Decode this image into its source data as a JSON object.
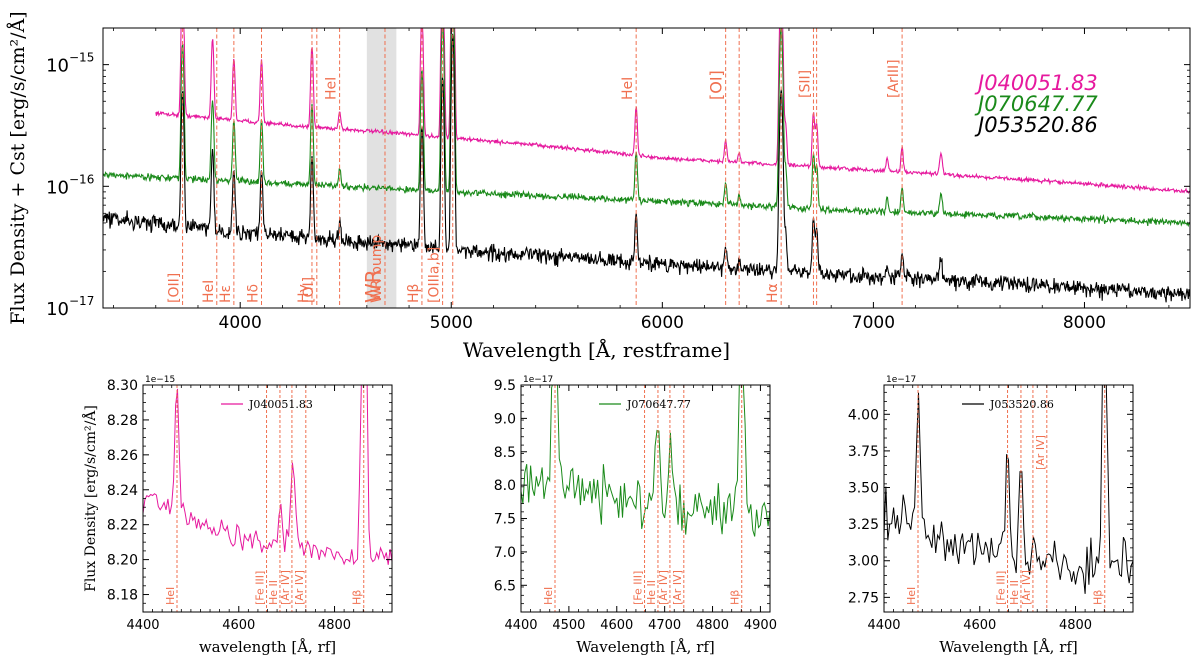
{
  "colors": {
    "magenta": "#e6199e",
    "green": "#1a8a1a",
    "black": "#000000",
    "line_marker": "#f07050",
    "wr_band": "#d9d9d9"
  },
  "chart_data": [
    {
      "type": "line",
      "ylabel": "Flux Density + Cst [erg/s/cm²/Å]",
      "xlabel": "Wavelength [Å, restframe]",
      "xlim": [
        3350,
        8500
      ],
      "ylim": [
        1e-17,
        2e-15
      ],
      "yscale": "log",
      "x_ticks": [
        4000,
        5000,
        6000,
        7000,
        8000
      ],
      "x_tick_labels": [
        "4000",
        "5000",
        "6000",
        "7000",
        "8000"
      ],
      "y_ticks": [
        1e-17,
        1e-16,
        1e-15
      ],
      "y_tick_labels": [
        "10",
        "10",
        "10"
      ],
      "y_tick_exponents": [
        "−17",
        "−16",
        "−15"
      ],
      "legend_placement": "top-right",
      "wr_band": [
        4600,
        4740
      ],
      "series": [
        {
          "name": "J040051.83",
          "color": "#e6199e",
          "start": 3600,
          "continuum": [
            [
              3600,
              4e-16
            ],
            [
              4200,
              3.2e-16
            ],
            [
              5000,
              2.5e-16
            ],
            [
              6000,
              1.7e-16
            ],
            [
              7000,
              1.35e-16
            ],
            [
              8500,
              9e-17
            ]
          ],
          "noise": 0.03
        },
        {
          "name": "J070647.77",
          "color": "#1a8a1a",
          "start": 3350,
          "continuum": [
            [
              3350,
              1.25e-16
            ],
            [
              4000,
              1.1e-16
            ],
            [
              5000,
              9e-17
            ],
            [
              6000,
              7.5e-17
            ],
            [
              7000,
              6.2e-17
            ],
            [
              8500,
              5e-17
            ]
          ],
          "noise": 0.05
        },
        {
          "name": "J053520.86",
          "color": "#000000",
          "start": 3350,
          "continuum": [
            [
              3350,
              5.5e-17
            ],
            [
              4000,
              4.2e-17
            ],
            [
              5000,
              3e-17
            ],
            [
              6000,
              2.3e-17
            ],
            [
              7000,
              1.8e-17
            ],
            [
              8500,
              1.3e-17
            ]
          ],
          "noise": 0.12
        }
      ],
      "emission_lines": [
        {
          "w": 3727,
          "amp": 12,
          "sig": 5
        },
        {
          "w": 3869,
          "amp": 3.5,
          "sig": 5
        },
        {
          "w": 3970,
          "amp": 2.2,
          "sig": 5
        },
        {
          "w": 4101,
          "amp": 2.3,
          "sig": 5
        },
        {
          "w": 4340,
          "amp": 3.6,
          "sig": 5
        },
        {
          "w": 4471,
          "amp": 0.4,
          "sig": 5
        },
        {
          "w": 4861,
          "amp": 9,
          "sig": 5
        },
        {
          "w": 4959,
          "amp": 25,
          "sig": 5
        },
        {
          "w": 5007,
          "amp": 60,
          "sig": 5
        },
        {
          "w": 5876,
          "amp": 1.5,
          "sig": 5
        },
        {
          "w": 6300,
          "amp": 0.5,
          "sig": 5
        },
        {
          "w": 6364,
          "amp": 0.2,
          "sig": 5
        },
        {
          "w": 6563,
          "amp": 30,
          "sig": 6
        },
        {
          "w": 6584,
          "amp": 1.2,
          "sig": 5
        },
        {
          "w": 6716,
          "amp": 1.8,
          "sig": 5
        },
        {
          "w": 6731,
          "amp": 1.3,
          "sig": 5
        },
        {
          "w": 7065,
          "amp": 0.3,
          "sig": 5
        },
        {
          "w": 7136,
          "amp": 0.6,
          "sig": 5
        },
        {
          "w": 7320,
          "amp": 0.5,
          "sig": 6
        }
      ],
      "marker_lines": [
        {
          "w": 3727,
          "label": "[OII]",
          "pos": "bottom"
        },
        {
          "w": 3889,
          "label": "HeI",
          "pos": "bottom"
        },
        {
          "w": 3970,
          "label": "Hε",
          "pos": "bottom"
        },
        {
          "w": 4101,
          "label": "Hδ",
          "pos": "bottom"
        },
        {
          "w": 4340,
          "label": "Hγ",
          "pos": "bottom"
        },
        {
          "w": 4363,
          "label": "[OI]",
          "pos": "bottom"
        },
        {
          "w": 4471,
          "label": "HeI",
          "pos": "top"
        },
        {
          "w": 4686,
          "label": "WR bump",
          "pos": "bottom"
        },
        {
          "w": 4861,
          "label": "Hβ",
          "pos": "bottom"
        },
        {
          "w": 4959,
          "label": "[OIIIa,b]",
          "pos": "bottom"
        },
        {
          "w": 5007,
          "label": "",
          "pos": "none"
        },
        {
          "w": 5876,
          "label": "HeI",
          "pos": "top"
        },
        {
          "w": 6300,
          "label": "[OI]",
          "pos": "top"
        },
        {
          "w": 6364,
          "label": "",
          "pos": "none"
        },
        {
          "w": 6563,
          "label": "Hα",
          "pos": "bottom"
        },
        {
          "w": 6716,
          "label": "[SII]",
          "pos": "top"
        },
        {
          "w": 6731,
          "label": "",
          "pos": "none"
        },
        {
          "w": 7136,
          "label": "[ArIII]",
          "pos": "top"
        }
      ],
      "wr_label": "WR"
    },
    {
      "type": "line",
      "xlabel": "wavelength [Å, rf]",
      "ylabel": "Flux Density [erg/s/cm²/Å]",
      "offset_label": "1e−15",
      "xlim": [
        4400,
        4920
      ],
      "ylim": [
        8.17,
        8.3
      ],
      "x_ticks": [
        4400,
        4600,
        4800
      ],
      "y_ticks": [
        8.18,
        8.2,
        8.22,
        8.24,
        8.26,
        8.28,
        8.3
      ],
      "y_tick_labels": [
        "8.18",
        "8.20",
        "8.22",
        "8.24",
        "8.26",
        "8.28",
        "8.30"
      ],
      "legend": "J040051.83",
      "color": "#e6199e",
      "base": [
        [
          4400,
          8.235
        ],
        [
          4600,
          8.213
        ],
        [
          4840,
          8.2
        ],
        [
          4920,
          8.205
        ]
      ],
      "noise": 0.006,
      "features": [
        {
          "w": 4471,
          "amp": 0.08,
          "sig": 4
        },
        {
          "w": 4713,
          "amp": 0.045,
          "sig": 5
        },
        {
          "w": 4686,
          "amp": 0.03,
          "sig": 3
        },
        {
          "w": 4861,
          "amp": 0.5,
          "sig": 4
        }
      ],
      "markers": [
        {
          "w": 4471,
          "label": "HeI"
        },
        {
          "w": 4658,
          "label": "[Fe III]"
        },
        {
          "w": 4686,
          "label": "He II"
        },
        {
          "w": 4711,
          "label": "[Ar IV]"
        },
        {
          "w": 4740,
          "label": "[Ar IV]"
        },
        {
          "w": 4861,
          "label": "Hβ"
        }
      ]
    },
    {
      "type": "line",
      "xlabel": "Wavelength [Å, rf]",
      "offset_label": "1e−17",
      "xlim": [
        4400,
        4920
      ],
      "ylim": [
        6.1,
        9.5
      ],
      "x_ticks": [
        4400,
        4500,
        4600,
        4700,
        4800,
        4900
      ],
      "y_ticks": [
        6.5,
        7.0,
        7.5,
        8.0,
        8.5,
        9.0,
        9.5
      ],
      "y_tick_labels": [
        "6.5",
        "7.0",
        "7.5",
        "8.0",
        "8.5",
        "9.0",
        "9.5"
      ],
      "legend": "J070647.77",
      "color": "#1a8a1a",
      "base": [
        [
          4400,
          8.1
        ],
        [
          4600,
          7.85
        ],
        [
          4800,
          7.6
        ],
        [
          4920,
          7.6
        ]
      ],
      "noise": 0.35,
      "features": [
        {
          "w": 4471,
          "amp": 6,
          "sig": 4
        },
        {
          "w": 4686,
          "amp": 1.4,
          "sig": 4
        },
        {
          "w": 4713,
          "amp": 1.0,
          "sig": 4
        },
        {
          "w": 4861,
          "amp": 6,
          "sig": 4
        }
      ],
      "markers": [
        {
          "w": 4471,
          "label": "HeI"
        },
        {
          "w": 4658,
          "label": "[Fe III]"
        },
        {
          "w": 4686,
          "label": "He II"
        },
        {
          "w": 4711,
          "label": "[Ar IV]"
        },
        {
          "w": 4740,
          "label": "[Ar IV]"
        },
        {
          "w": 4861,
          "label": "Hβ"
        }
      ]
    },
    {
      "type": "line",
      "xlabel": "Wavelength [Å, rf]",
      "offset_label": "1e−17",
      "xlim": [
        4400,
        4920
      ],
      "ylim": [
        2.65,
        4.2
      ],
      "x_ticks": [
        4400,
        4600,
        4800
      ],
      "y_ticks": [
        2.75,
        3.0,
        3.25,
        3.5,
        3.75,
        4.0
      ],
      "y_tick_labels": [
        "2.75",
        "3.00",
        "3.25",
        "3.50",
        "3.75",
        "4.00"
      ],
      "legend": "J053520.86",
      "color": "#000000",
      "base": [
        [
          4400,
          3.3
        ],
        [
          4600,
          3.1
        ],
        [
          4800,
          2.95
        ],
        [
          4920,
          3.0
        ]
      ],
      "noise": 0.14,
      "features": [
        {
          "w": 4471,
          "amp": 0.9,
          "sig": 4
        },
        {
          "w": 4658,
          "amp": 0.8,
          "sig": 3
        },
        {
          "w": 4686,
          "amp": 0.6,
          "sig": 4
        },
        {
          "w": 4861,
          "amp": 3,
          "sig": 4
        }
      ],
      "markers": [
        {
          "w": 4471,
          "label": "HeI"
        },
        {
          "w": 4658,
          "label": "[Fe III]"
        },
        {
          "w": 4686,
          "label": "He II"
        },
        {
          "w": 4711,
          "label": "[Ar IV]"
        },
        {
          "w": 4740,
          "label": "[Ar IV]"
        },
        {
          "w": 4861,
          "label": "Hβ"
        }
      ]
    }
  ]
}
